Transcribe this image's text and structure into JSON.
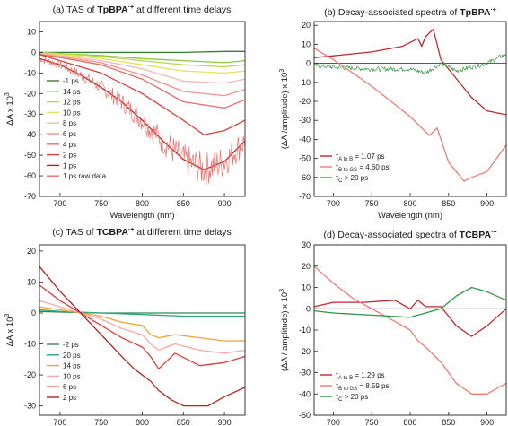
{
  "colors": {
    "neg1": "#3a7d2e",
    "p14": "#8cc63f",
    "p12": "#b6d94c",
    "p10": "#e5e35a",
    "p8": "#f7b7b1",
    "p6": "#f2908a",
    "p4": "#e86c66",
    "p2": "#d9413c",
    "p1": "#c0201f",
    "raw": "#e7716d",
    "m2": "#2e8b57",
    "p20": "#2fa67a",
    "p14b": "#f3a23a",
    "p10b": "#f6a9a5",
    "p6b": "#dc3e38",
    "p2b": "#b0261f",
    "dasA": "#c1272d",
    "dasB": "#f07b78",
    "dasC": "#2e9a3f"
  },
  "chart_data": [
    {
      "id": "a",
      "type": "line",
      "title": "(a) TAS of TpBPA·+ at different time delays",
      "title_parts": {
        "pre": "(a) TAS of ",
        "bold": "TpBPA",
        "sup": "·+",
        "post": " at different time delays"
      },
      "xlabel": "Wavelength (nm)",
      "ylabel": "ΔA x 10",
      "ylabel_sup": "3",
      "xlim": [
        675,
        925
      ],
      "ylim": [
        -70,
        15
      ],
      "xticks": [
        700,
        750,
        800,
        850,
        900
      ],
      "yticks": [
        10,
        0,
        -10,
        -20,
        -30,
        -40,
        -50,
        -60,
        -70
      ],
      "zero_line": false,
      "legend": "left",
      "series": [
        {
          "name": "-1 ps",
          "color": "neg1",
          "x": [
            675,
            700,
            750,
            800,
            850,
            900,
            925
          ],
          "y": [
            0,
            0,
            0,
            0,
            0,
            0.5,
            0.5
          ]
        },
        {
          "name": "14 ps",
          "color": "p14",
          "x": [
            675,
            700,
            750,
            800,
            850,
            900,
            925
          ],
          "y": [
            0,
            -0.5,
            -1.5,
            -3,
            -4,
            -5,
            -4
          ]
        },
        {
          "name": "12 ps",
          "color": "p12",
          "x": [
            675,
            700,
            750,
            800,
            850,
            900,
            925
          ],
          "y": [
            0,
            -0.5,
            -2,
            -4,
            -6,
            -7,
            -6
          ]
        },
        {
          "name": "10 ps",
          "color": "p10",
          "x": [
            675,
            700,
            750,
            800,
            850,
            900,
            925
          ],
          "y": [
            -0.5,
            -1,
            -3,
            -6,
            -9,
            -10,
            -9
          ]
        },
        {
          "name": "8 ps",
          "color": "p8",
          "x": [
            675,
            700,
            750,
            800,
            850,
            900,
            925
          ],
          "y": [
            -0.5,
            -1.5,
            -4,
            -8,
            -14,
            -15,
            -13
          ]
        },
        {
          "name": "6 ps",
          "color": "p6",
          "x": [
            675,
            700,
            750,
            800,
            850,
            900,
            925
          ],
          "y": [
            -1,
            -2,
            -5,
            -11,
            -19,
            -21,
            -18
          ]
        },
        {
          "name": "4 ps",
          "color": "p4",
          "x": [
            675,
            700,
            750,
            800,
            850,
            900,
            925
          ],
          "y": [
            -1,
            -2.5,
            -6,
            -13,
            -24,
            -27,
            -23
          ]
        },
        {
          "name": "2 ps",
          "color": "p2",
          "x": [
            675,
            700,
            750,
            800,
            850,
            875,
            900,
            925
          ],
          "y": [
            -1,
            -4,
            -10,
            -20,
            -33,
            -40,
            -38,
            -33
          ]
        },
        {
          "name": "1 ps",
          "color": "p1",
          "x": [
            675,
            700,
            725,
            750,
            775,
            800,
            825,
            850,
            875,
            900,
            925
          ],
          "y": [
            -3,
            -6,
            -11,
            -17,
            -24,
            -33,
            -43,
            -52,
            -57,
            -53,
            -43
          ]
        },
        {
          "name": "1 ps raw data",
          "color": "raw",
          "noisy": true,
          "x": [
            675,
            700,
            725,
            750,
            775,
            800,
            825,
            850,
            875,
            900,
            925
          ],
          "y": [
            -3,
            -6,
            -11,
            -17,
            -24,
            -33,
            -43,
            -52,
            -57,
            -53,
            -43
          ]
        }
      ]
    },
    {
      "id": "b",
      "type": "line",
      "title": "(b) Decay-associated spectra of TpBPA·+",
      "title_parts": {
        "pre": "(b) Decay-associated spectra of ",
        "bold": "TpBPA",
        "sup": "·+",
        "post": ""
      },
      "xlabel": "Wavelength (nm)",
      "ylabel": "(ΔA /amplitude) x 10",
      "ylabel_sup": "3",
      "xlim": [
        675,
        925
      ],
      "ylim": [
        -70,
        22
      ],
      "xticks": [
        700,
        750,
        800,
        850,
        900
      ],
      "yticks": [
        20,
        10,
        0,
        -10,
        -20,
        -30,
        -40,
        -50,
        -60,
        -70
      ],
      "zero_line": true,
      "legend": "lower-left",
      "series": [
        {
          "name": "τA to B = 1.07 ps",
          "label": [
            "τ",
            "A to B",
            " = 1.07 ps"
          ],
          "color": "dasA",
          "x": [
            675,
            700,
            750,
            790,
            810,
            815,
            820,
            825,
            830,
            835,
            840,
            860,
            880,
            900,
            925
          ],
          "y": [
            3,
            4,
            6,
            9,
            13,
            9,
            14,
            16,
            18,
            10,
            2,
            -8,
            -18,
            -25,
            -27
          ]
        },
        {
          "name": "τB to GS = 4.60 ps",
          "label": [
            "τ",
            "B to GS",
            " = 4.60 ps"
          ],
          "color": "dasB",
          "x": [
            675,
            700,
            725,
            750,
            775,
            800,
            825,
            835,
            850,
            870,
            880,
            900,
            925
          ],
          "y": [
            8,
            2,
            -5,
            -12,
            -20,
            -28,
            -38,
            -34,
            -52,
            -62,
            -60,
            -57,
            -43
          ]
        },
        {
          "name": "τC > 20 ps",
          "label": [
            "τ",
            "C",
            " > 20 ps"
          ],
          "color": "dasC",
          "noisy": true,
          "x": [
            675,
            700,
            750,
            800,
            820,
            840,
            860,
            880,
            900,
            925
          ],
          "y": [
            -1,
            -2,
            -3,
            -3,
            -5,
            0,
            -4,
            -2,
            0,
            5
          ]
        }
      ]
    },
    {
      "id": "c",
      "type": "line",
      "title": "(c) TAS of TCBPA·+ at different time delays",
      "title_parts": {
        "pre": "(c) TAS of ",
        "bold": "TCBPA",
        "sup": "·+",
        "post": " at different time delays"
      },
      "xlabel": "Wavelength (nm)",
      "ylabel": "ΔA x 10",
      "ylabel_sup": "3",
      "xlim": [
        675,
        925
      ],
      "ylim": [
        -33,
        22
      ],
      "xticks": [
        700,
        750,
        800,
        850,
        900
      ],
      "yticks": [
        20,
        10,
        0,
        -10,
        -20,
        -30
      ],
      "zero_line": false,
      "legend": "left",
      "series": [
        {
          "name": "-2 ps",
          "color": "m2",
          "x": [
            675,
            700,
            750,
            800,
            850,
            900,
            925
          ],
          "y": [
            0.5,
            0.3,
            0,
            0,
            0,
            0,
            0
          ]
        },
        {
          "name": "20 ps",
          "color": "p20",
          "x": [
            675,
            700,
            750,
            800,
            850,
            900,
            925
          ],
          "y": [
            1,
            0.5,
            0,
            -0.5,
            -1,
            -1,
            -1
          ]
        },
        {
          "name": "14 ps",
          "color": "p14b",
          "x": [
            675,
            700,
            725,
            750,
            775,
            800,
            810,
            820,
            840,
            870,
            900,
            925
          ],
          "y": [
            2,
            1,
            0,
            -1,
            -3,
            -4,
            -7,
            -8,
            -7,
            -8,
            -9,
            -9
          ]
        },
        {
          "name": "10 ps",
          "color": "p10b",
          "x": [
            675,
            700,
            725,
            750,
            775,
            800,
            810,
            820,
            840,
            870,
            900,
            925
          ],
          "y": [
            4,
            2,
            0,
            -2,
            -5,
            -7,
            -10,
            -12,
            -10,
            -12,
            -13,
            -12
          ]
        },
        {
          "name": "6 ps",
          "color": "p6b",
          "x": [
            675,
            700,
            725,
            750,
            775,
            800,
            810,
            820,
            840,
            870,
            900,
            925
          ],
          "y": [
            9,
            4,
            0,
            -4,
            -8,
            -11,
            -14,
            -18,
            -13,
            -17,
            -16,
            -14
          ]
        },
        {
          "name": "2 ps",
          "color": "p2b",
          "x": [
            675,
            700,
            725,
            750,
            775,
            790,
            810,
            820,
            835,
            850,
            880,
            900,
            925
          ],
          "y": [
            15,
            7,
            0,
            -7,
            -14,
            -18,
            -22,
            -25,
            -28,
            -30,
            -30,
            -27,
            -24
          ]
        }
      ]
    },
    {
      "id": "d",
      "type": "line",
      "title": "(d) Decay-associated spectra of TCBPA·+",
      "title_parts": {
        "pre": "(d) Decay-associated spectra of ",
        "bold": "TCBPA",
        "sup": "·+",
        "post": ""
      },
      "xlabel": "Wavelength (nm)",
      "ylabel": "(ΔA / amplitude) x 10",
      "ylabel_sup": "3",
      "xlim": [
        675,
        925
      ],
      "ylim": [
        -50,
        30
      ],
      "xticks": [
        700,
        750,
        800,
        850,
        900
      ],
      "yticks": [
        30,
        20,
        10,
        0,
        -10,
        -20,
        -30,
        -40,
        -50
      ],
      "zero_line": true,
      "legend": "lower-left",
      "series": [
        {
          "name": "τA to B = 1.29 ps",
          "label": [
            "τ",
            "A to B",
            " = 1.29 ps"
          ],
          "color": "dasA",
          "x": [
            675,
            700,
            740,
            780,
            800,
            810,
            820,
            840,
            860,
            880,
            900,
            925
          ],
          "y": [
            1,
            3,
            3,
            4,
            0,
            4,
            1,
            1,
            -8,
            -13,
            -8,
            0
          ]
        },
        {
          "name": "τB to GS = 8.59 ps",
          "label": [
            "τ",
            "B to GS",
            " = 8.59 ps"
          ],
          "color": "dasB",
          "x": [
            675,
            700,
            725,
            750,
            775,
            800,
            810,
            820,
            840,
            860,
            880,
            900,
            925
          ],
          "y": [
            20,
            12,
            5,
            0,
            -5,
            -10,
            -15,
            -18,
            -25,
            -35,
            -40,
            -40,
            -35
          ]
        },
        {
          "name": "τC > 20 ps",
          "label": [
            "τ",
            "C",
            " > 20 ps"
          ],
          "color": "dasC",
          "x": [
            675,
            700,
            750,
            800,
            840,
            860,
            880,
            900,
            925
          ],
          "y": [
            -1,
            -2,
            -3,
            -4,
            0,
            6,
            10,
            8,
            4
          ]
        }
      ]
    }
  ]
}
